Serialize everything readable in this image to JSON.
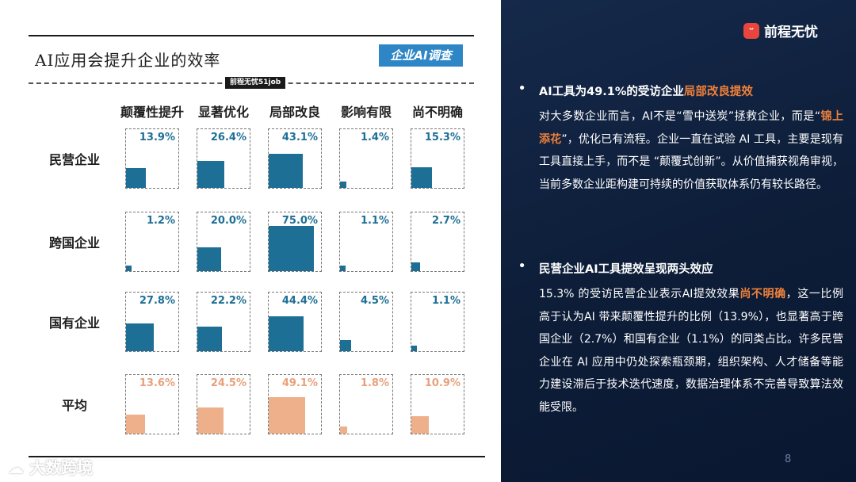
{
  "title": "AI应用会提升企业的效率",
  "tag": "企业AI调查",
  "source": "前程无忧51job",
  "chart_data": {
    "type": "bar",
    "title": "AI应用会提升企业的效率",
    "categories": [
      "颠覆性提升",
      "显著优化",
      "局部改良",
      "影响有限",
      "尚不明确"
    ],
    "series": [
      {
        "name": "民营企业",
        "values": [
          13.9,
          26.4,
          43.1,
          1.4,
          15.3
        ],
        "labels": [
          "13.9%",
          "26.4%",
          "43.1%",
          "1.4%",
          "15.3%"
        ]
      },
      {
        "name": "跨国企业",
        "values": [
          1.2,
          20.0,
          75.0,
          1.1,
          2.7
        ],
        "labels": [
          "1.2%",
          "20.0%",
          "75.0%",
          "1.1%",
          "2.7%"
        ]
      },
      {
        "name": "国有企业",
        "values": [
          27.8,
          22.2,
          44.4,
          4.5,
          1.1
        ],
        "labels": [
          "27.8%",
          "22.2%",
          "44.4%",
          "4.5%",
          "1.1%"
        ]
      },
      {
        "name": "平均",
        "values": [
          13.6,
          24.5,
          49.1,
          1.8,
          10.9
        ],
        "labels": [
          "13.6%",
          "24.5%",
          "49.1%",
          "1.8%",
          "10.9%"
        ]
      }
    ],
    "encoding": "square area proportional to value",
    "max_value": 100
  },
  "colors": {
    "series": "#1e6f96",
    "average": "#eeb08a",
    "average_label": "#e8a07a",
    "accent": "#f0813a"
  },
  "logo": {
    "icon": "smile-icon",
    "text": "前程无忧"
  },
  "watermark": "大数跨境",
  "page_number": "8",
  "sections": [
    {
      "head_prefix": "AI工具为49.1%的受访企业",
      "head_highlight": "局部改良提效",
      "body_1": "对大多数企业而言，AI不是“雪中送炭”拯救企业，而是“",
      "body_highlight": "锦上添花",
      "body_2": "”，优化已有流程。企业一直在试验 AI 工具，主要是现有工具直接上手，而不是 “颠覆式创新”。从价值捕获视角审视，当前多数企业距构建可持续的价值获取体系仍有较长路径。"
    },
    {
      "head": "民营企业AI工具提效呈现两头效应",
      "body_1": "15.3% 的受访民营企业表示AI提效效果",
      "body_highlight": "尚不明确",
      "body_2": "，这一比例高于认为AI 带来颠覆性提升的比例（13.9%），也显著高于跨国企业（2.7%）和国有企业（1.1%）的同类占比。许多民营企业在 AI 应用中仍处探索瓶颈期，组织架构、人才储备等能力建设滞后于技术迭代速度，数据治理体系不完善导致算法效能受限。"
    }
  ]
}
